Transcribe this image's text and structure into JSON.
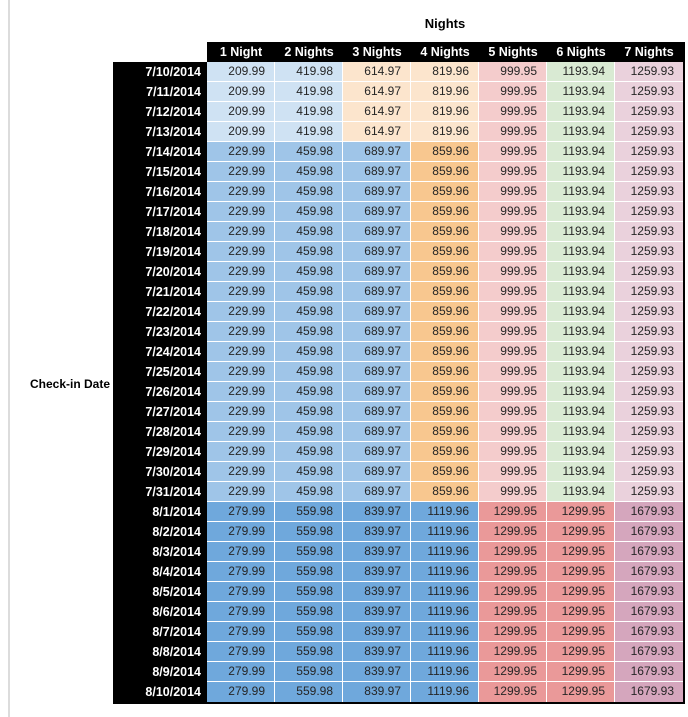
{
  "chart_data": {
    "type": "table",
    "title": "Nights",
    "row_axis_label": "Check-in Date",
    "columns": [
      "1 Night",
      "2 Nights",
      "3 Nights",
      "4 Nights",
      "5 Nights",
      "6 Nights",
      "7 Nights"
    ],
    "rows": [
      {
        "date": "7/10/2014",
        "band": "early_july",
        "values": [
          209.99,
          419.98,
          614.97,
          819.96,
          999.95,
          1193.94,
          1259.93
        ]
      },
      {
        "date": "7/11/2014",
        "band": "early_july",
        "values": [
          209.99,
          419.98,
          614.97,
          819.96,
          999.95,
          1193.94,
          1259.93
        ]
      },
      {
        "date": "7/12/2014",
        "band": "early_july",
        "values": [
          209.99,
          419.98,
          614.97,
          819.96,
          999.95,
          1193.94,
          1259.93
        ]
      },
      {
        "date": "7/13/2014",
        "band": "early_july",
        "values": [
          209.99,
          419.98,
          614.97,
          819.96,
          999.95,
          1193.94,
          1259.93
        ]
      },
      {
        "date": "7/14/2014",
        "band": "mid_july",
        "values": [
          229.99,
          459.98,
          689.97,
          859.96,
          999.95,
          1193.94,
          1259.93
        ]
      },
      {
        "date": "7/15/2014",
        "band": "mid_july",
        "values": [
          229.99,
          459.98,
          689.97,
          859.96,
          999.95,
          1193.94,
          1259.93
        ]
      },
      {
        "date": "7/16/2014",
        "band": "mid_july",
        "values": [
          229.99,
          459.98,
          689.97,
          859.96,
          999.95,
          1193.94,
          1259.93
        ]
      },
      {
        "date": "7/17/2014",
        "band": "mid_july",
        "values": [
          229.99,
          459.98,
          689.97,
          859.96,
          999.95,
          1193.94,
          1259.93
        ]
      },
      {
        "date": "7/18/2014",
        "band": "mid_july",
        "values": [
          229.99,
          459.98,
          689.97,
          859.96,
          999.95,
          1193.94,
          1259.93
        ]
      },
      {
        "date": "7/19/2014",
        "band": "mid_july",
        "values": [
          229.99,
          459.98,
          689.97,
          859.96,
          999.95,
          1193.94,
          1259.93
        ]
      },
      {
        "date": "7/20/2014",
        "band": "mid_july",
        "values": [
          229.99,
          459.98,
          689.97,
          859.96,
          999.95,
          1193.94,
          1259.93
        ]
      },
      {
        "date": "7/21/2014",
        "band": "mid_july",
        "values": [
          229.99,
          459.98,
          689.97,
          859.96,
          999.95,
          1193.94,
          1259.93
        ]
      },
      {
        "date": "7/22/2014",
        "band": "mid_july",
        "values": [
          229.99,
          459.98,
          689.97,
          859.96,
          999.95,
          1193.94,
          1259.93
        ]
      },
      {
        "date": "7/23/2014",
        "band": "mid_july",
        "values": [
          229.99,
          459.98,
          689.97,
          859.96,
          999.95,
          1193.94,
          1259.93
        ]
      },
      {
        "date": "7/24/2014",
        "band": "mid_july",
        "values": [
          229.99,
          459.98,
          689.97,
          859.96,
          999.95,
          1193.94,
          1259.93
        ]
      },
      {
        "date": "7/25/2014",
        "band": "mid_july",
        "values": [
          229.99,
          459.98,
          689.97,
          859.96,
          999.95,
          1193.94,
          1259.93
        ]
      },
      {
        "date": "7/26/2014",
        "band": "mid_july",
        "values": [
          229.99,
          459.98,
          689.97,
          859.96,
          999.95,
          1193.94,
          1259.93
        ]
      },
      {
        "date": "7/27/2014",
        "band": "mid_july",
        "values": [
          229.99,
          459.98,
          689.97,
          859.96,
          999.95,
          1193.94,
          1259.93
        ]
      },
      {
        "date": "7/28/2014",
        "band": "mid_july",
        "values": [
          229.99,
          459.98,
          689.97,
          859.96,
          999.95,
          1193.94,
          1259.93
        ]
      },
      {
        "date": "7/29/2014",
        "band": "mid_july",
        "values": [
          229.99,
          459.98,
          689.97,
          859.96,
          999.95,
          1193.94,
          1259.93
        ]
      },
      {
        "date": "7/30/2014",
        "band": "mid_july",
        "values": [
          229.99,
          459.98,
          689.97,
          859.96,
          999.95,
          1193.94,
          1259.93
        ]
      },
      {
        "date": "7/31/2014",
        "band": "mid_july",
        "values": [
          229.99,
          459.98,
          689.97,
          859.96,
          999.95,
          1193.94,
          1259.93
        ]
      },
      {
        "date": "8/1/2014",
        "band": "august",
        "values": [
          279.99,
          559.98,
          839.97,
          1119.96,
          1299.95,
          1299.95,
          1679.93
        ]
      },
      {
        "date": "8/2/2014",
        "band": "august",
        "values": [
          279.99,
          559.98,
          839.97,
          1119.96,
          1299.95,
          1299.95,
          1679.93
        ]
      },
      {
        "date": "8/3/2014",
        "band": "august",
        "values": [
          279.99,
          559.98,
          839.97,
          1119.96,
          1299.95,
          1299.95,
          1679.93
        ]
      },
      {
        "date": "8/4/2014",
        "band": "august",
        "values": [
          279.99,
          559.98,
          839.97,
          1119.96,
          1299.95,
          1299.95,
          1679.93
        ]
      },
      {
        "date": "8/5/2014",
        "band": "august",
        "values": [
          279.99,
          559.98,
          839.97,
          1119.96,
          1299.95,
          1299.95,
          1679.93
        ]
      },
      {
        "date": "8/6/2014",
        "band": "august",
        "values": [
          279.99,
          559.98,
          839.97,
          1119.96,
          1299.95,
          1299.95,
          1679.93
        ]
      },
      {
        "date": "8/7/2014",
        "band": "august",
        "values": [
          279.99,
          559.98,
          839.97,
          1119.96,
          1299.95,
          1299.95,
          1679.93
        ]
      },
      {
        "date": "8/8/2014",
        "band": "august",
        "values": [
          279.99,
          559.98,
          839.97,
          1119.96,
          1299.95,
          1299.95,
          1679.93
        ]
      },
      {
        "date": "8/9/2014",
        "band": "august",
        "values": [
          279.99,
          559.98,
          839.97,
          1119.96,
          1299.95,
          1299.95,
          1679.93
        ]
      },
      {
        "date": "8/10/2014",
        "band": "august",
        "values": [
          279.99,
          559.98,
          839.97,
          1119.96,
          1299.95,
          1299.95,
          1679.93
        ]
      }
    ]
  },
  "styles": {
    "palette": {
      "pale_blue": "#cfe2f3",
      "pale_orange": "#fce5cd",
      "pale_red": "#f4cccc",
      "pale_green": "#d9ead3",
      "pale_pink": "#ead1dc",
      "medium_blue": "#9fc5e8",
      "medium_orange": "#f8c78f",
      "dark_blue": "#6fa8dc",
      "salmon_red": "#ea9999",
      "mauve_pink": "#d5a6bd",
      "header_bg": "#000000",
      "header_text": "#ffffff",
      "cell_text": "#262626"
    },
    "bands": {
      "early_july": [
        "pale_blue",
        "pale_blue",
        "pale_orange",
        "pale_orange",
        "pale_red",
        "pale_green",
        "pale_pink"
      ],
      "mid_july": [
        "medium_blue",
        "medium_blue",
        "medium_blue",
        "medium_orange",
        "pale_red",
        "pale_green",
        "pale_pink"
      ],
      "august": [
        "dark_blue",
        "dark_blue",
        "dark_blue",
        "dark_blue",
        "salmon_red",
        "salmon_red",
        "mauve_pink"
      ]
    }
  }
}
